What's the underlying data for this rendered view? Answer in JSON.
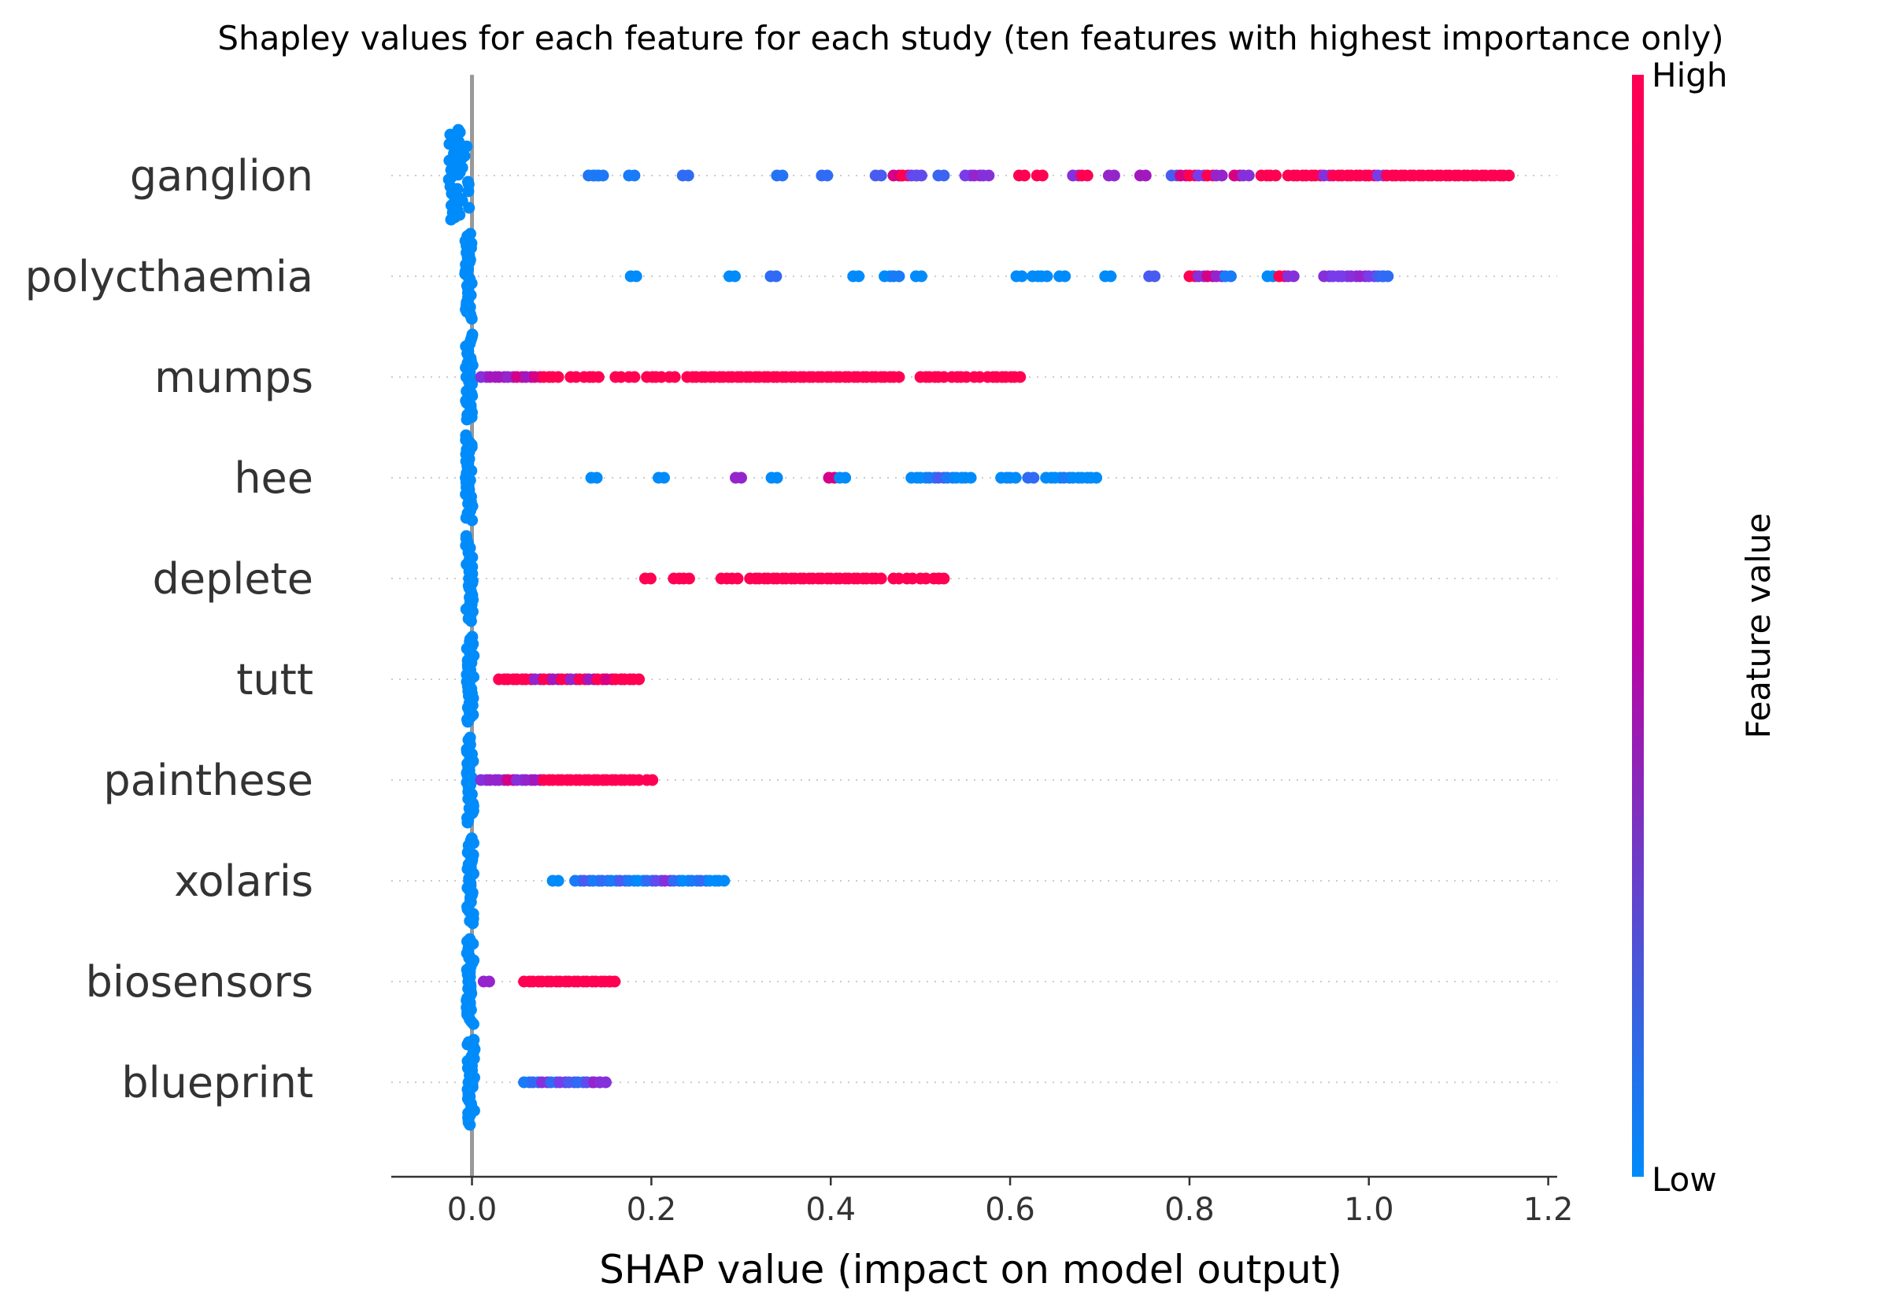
{
  "chart_data": {
    "type": "scatter",
    "subtype": "shap-beeswarm",
    "title": "Shapley values for each feature for each study (ten features with highest importance only)",
    "xlabel": "SHAP value (impact on model output)",
    "ylabel": "",
    "xlim": [
      -0.09,
      1.21
    ],
    "xticks": [
      "0.0",
      "0.2",
      "0.4",
      "0.6",
      "0.8",
      "1.0",
      "1.2"
    ],
    "xtick_values": [
      0.0,
      0.2,
      0.4,
      0.6,
      0.8,
      1.0,
      1.2
    ],
    "grid": false,
    "colorbar": {
      "label": "Feature value",
      "high_label": "High",
      "low_label": "Low",
      "high_color": "#ff0052",
      "low_color": "#008bfb"
    },
    "features": [
      {
        "name": "ganglion",
        "zero_cluster": {
          "center": -0.015,
          "spread": 0.012,
          "color": 0
        },
        "points": [
          [
            0.13,
            0.15
          ],
          [
            0.135,
            0.1
          ],
          [
            0.14,
            0.12
          ],
          [
            0.175,
            0.1
          ],
          [
            0.235,
            0.2
          ],
          [
            0.34,
            0.15
          ],
          [
            0.39,
            0.2
          ],
          [
            0.45,
            0.3
          ],
          [
            0.47,
            0.9
          ],
          [
            0.48,
            1
          ],
          [
            0.49,
            0.5
          ],
          [
            0.495,
            0.4
          ],
          [
            0.52,
            0.25
          ],
          [
            0.55,
            0.5
          ],
          [
            0.56,
            0.7
          ],
          [
            0.57,
            0.6
          ],
          [
            0.61,
            1
          ],
          [
            0.63,
            1
          ],
          [
            0.67,
            0.6
          ],
          [
            0.68,
            1
          ],
          [
            0.71,
            0.7
          ],
          [
            0.745,
            0.8
          ],
          [
            0.78,
            0.3
          ],
          [
            0.79,
            0.9
          ],
          [
            0.8,
            1
          ],
          [
            0.81,
            0.5
          ],
          [
            0.82,
            1
          ],
          [
            0.83,
            0.7
          ],
          [
            0.85,
            0.9
          ],
          [
            0.86,
            0.6
          ],
          [
            0.88,
            1
          ],
          [
            0.89,
            1
          ],
          [
            0.91,
            1
          ],
          [
            0.92,
            1
          ],
          [
            0.93,
            1
          ],
          [
            0.94,
            1
          ],
          [
            0.95,
            0.6
          ],
          [
            0.96,
            1
          ],
          [
            0.97,
            1
          ],
          [
            0.98,
            1
          ],
          [
            0.99,
            1
          ],
          [
            1.0,
            1
          ],
          [
            1.01,
            0.5
          ],
          [
            1.02,
            1
          ],
          [
            1.03,
            1
          ],
          [
            1.04,
            1
          ],
          [
            1.05,
            1
          ],
          [
            1.06,
            1
          ],
          [
            1.07,
            1
          ],
          [
            1.08,
            1
          ],
          [
            1.09,
            1
          ],
          [
            1.1,
            1
          ],
          [
            1.11,
            1
          ],
          [
            1.12,
            1
          ],
          [
            1.13,
            1
          ],
          [
            1.14,
            1
          ],
          [
            1.15,
            1
          ]
        ]
      },
      {
        "name": "polycthaemia",
        "zero_cluster": {
          "center": -0.004,
          "spread": 0.004,
          "color": 0
        },
        "points": [
          [
            0.177,
            0
          ],
          [
            0.287,
            0
          ],
          [
            0.333,
            0.2
          ],
          [
            0.425,
            0
          ],
          [
            0.46,
            0
          ],
          [
            0.47,
            0.1
          ],
          [
            0.495,
            0
          ],
          [
            0.607,
            0
          ],
          [
            0.625,
            0
          ],
          [
            0.635,
            0
          ],
          [
            0.655,
            0
          ],
          [
            0.706,
            0
          ],
          [
            0.755,
            0.3
          ],
          [
            0.8,
            1
          ],
          [
            0.81,
            0.6
          ],
          [
            0.82,
            0.9
          ],
          [
            0.83,
            0.7
          ],
          [
            0.84,
            0.1
          ],
          [
            0.887,
            0
          ],
          [
            0.9,
            1
          ],
          [
            0.91,
            0.6
          ],
          [
            0.95,
            0.6
          ],
          [
            0.96,
            0.5
          ],
          [
            0.97,
            0.5
          ],
          [
            0.98,
            0.6
          ],
          [
            0.99,
            0.7
          ],
          [
            1.0,
            0.5
          ],
          [
            1.01,
            0.3
          ],
          [
            1.015,
            0.2
          ]
        ]
      },
      {
        "name": "mumps",
        "zero_cluster": {
          "center": -0.003,
          "spread": 0.004,
          "color": 0
        },
        "points": [
          [
            0.01,
            0.6
          ],
          [
            0.02,
            0.8
          ],
          [
            0.03,
            0.8
          ],
          [
            0.04,
            0.7
          ],
          [
            0.05,
            0.9
          ],
          [
            0.06,
            0.8
          ],
          [
            0.07,
            0.9
          ],
          [
            0.08,
            1
          ],
          [
            0.09,
            1
          ],
          [
            0.11,
            1
          ],
          [
            0.125,
            1
          ],
          [
            0.135,
            1
          ],
          [
            0.16,
            1
          ],
          [
            0.175,
            1
          ],
          [
            0.195,
            1
          ],
          [
            0.205,
            1
          ],
          [
            0.22,
            1
          ],
          [
            0.24,
            1
          ],
          [
            0.25,
            1
          ],
          [
            0.26,
            1
          ],
          [
            0.27,
            1
          ],
          [
            0.28,
            1
          ],
          [
            0.29,
            1
          ],
          [
            0.3,
            1
          ],
          [
            0.31,
            1
          ],
          [
            0.32,
            1
          ],
          [
            0.33,
            1
          ],
          [
            0.34,
            1
          ],
          [
            0.35,
            1
          ],
          [
            0.36,
            1
          ],
          [
            0.37,
            1
          ],
          [
            0.38,
            1
          ],
          [
            0.39,
            1
          ],
          [
            0.4,
            1
          ],
          [
            0.41,
            1
          ],
          [
            0.42,
            1
          ],
          [
            0.43,
            1
          ],
          [
            0.44,
            1
          ],
          [
            0.45,
            1
          ],
          [
            0.46,
            1
          ],
          [
            0.47,
            1
          ],
          [
            0.5,
            1
          ],
          [
            0.51,
            1
          ],
          [
            0.52,
            1
          ],
          [
            0.535,
            1
          ],
          [
            0.545,
            1
          ],
          [
            0.56,
            1
          ],
          [
            0.575,
            1
          ],
          [
            0.585,
            1
          ],
          [
            0.595,
            1
          ],
          [
            0.605,
            1
          ]
        ]
      },
      {
        "name": "hee",
        "zero_cluster": {
          "center": -0.003,
          "spread": 0.004,
          "color": 0
        },
        "points": [
          [
            0.133,
            0
          ],
          [
            0.208,
            0
          ],
          [
            0.294,
            0.7
          ],
          [
            0.334,
            0
          ],
          [
            0.398,
            0.9
          ],
          [
            0.41,
            0
          ],
          [
            0.49,
            0
          ],
          [
            0.5,
            0
          ],
          [
            0.51,
            0.1
          ],
          [
            0.52,
            0.3
          ],
          [
            0.53,
            0.1
          ],
          [
            0.54,
            0
          ],
          [
            0.55,
            0
          ],
          [
            0.59,
            0
          ],
          [
            0.6,
            0
          ],
          [
            0.62,
            0.2
          ],
          [
            0.64,
            0
          ],
          [
            0.65,
            0
          ],
          [
            0.66,
            0.1
          ],
          [
            0.67,
            0
          ],
          [
            0.68,
            0
          ],
          [
            0.69,
            0
          ]
        ]
      },
      {
        "name": "deplete",
        "zero_cluster": {
          "center": -0.003,
          "spread": 0.004,
          "color": 0
        },
        "points": [
          [
            0.193,
            1
          ],
          [
            0.225,
            1
          ],
          [
            0.236,
            1
          ],
          [
            0.278,
            1
          ],
          [
            0.29,
            1
          ],
          [
            0.31,
            1
          ],
          [
            0.32,
            1
          ],
          [
            0.33,
            1
          ],
          [
            0.34,
            1
          ],
          [
            0.35,
            1
          ],
          [
            0.36,
            1
          ],
          [
            0.37,
            1
          ],
          [
            0.38,
            1
          ],
          [
            0.39,
            1
          ],
          [
            0.4,
            1
          ],
          [
            0.41,
            1
          ],
          [
            0.42,
            1
          ],
          [
            0.43,
            1
          ],
          [
            0.44,
            1
          ],
          [
            0.45,
            1
          ],
          [
            0.47,
            1
          ],
          [
            0.485,
            1
          ],
          [
            0.5,
            1
          ],
          [
            0.515,
            1
          ],
          [
            0.52,
            1
          ]
        ]
      },
      {
        "name": "tutt",
        "zero_cluster": {
          "center": -0.002,
          "spread": 0.004,
          "color": 0
        },
        "points": [
          [
            0.03,
            1
          ],
          [
            0.04,
            1
          ],
          [
            0.05,
            1
          ],
          [
            0.06,
            1
          ],
          [
            0.07,
            0.7
          ],
          [
            0.08,
            1
          ],
          [
            0.09,
            0.8
          ],
          [
            0.1,
            1
          ],
          [
            0.11,
            0.7
          ],
          [
            0.12,
            1
          ],
          [
            0.13,
            0.8
          ],
          [
            0.14,
            1
          ],
          [
            0.15,
            0.9
          ],
          [
            0.16,
            1
          ],
          [
            0.17,
            1
          ],
          [
            0.18,
            1
          ]
        ]
      },
      {
        "name": "painthese",
        "zero_cluster": {
          "center": -0.002,
          "spread": 0.004,
          "color": 0
        },
        "points": [
          [
            0.01,
            0.6
          ],
          [
            0.02,
            0.7
          ],
          [
            0.03,
            0.7
          ],
          [
            0.04,
            0.9
          ],
          [
            0.05,
            0.6
          ],
          [
            0.06,
            0.7
          ],
          [
            0.07,
            0.8
          ],
          [
            0.08,
            1
          ],
          [
            0.09,
            1
          ],
          [
            0.1,
            1
          ],
          [
            0.11,
            1
          ],
          [
            0.12,
            1
          ],
          [
            0.13,
            1
          ],
          [
            0.14,
            1
          ],
          [
            0.15,
            1
          ],
          [
            0.16,
            1
          ],
          [
            0.17,
            1
          ],
          [
            0.18,
            1
          ],
          [
            0.195,
            1
          ]
        ]
      },
      {
        "name": "xolaris",
        "zero_cluster": {
          "center": -0.002,
          "spread": 0.004,
          "color": 0
        },
        "points": [
          [
            0.09,
            0
          ],
          [
            0.115,
            0.1
          ],
          [
            0.125,
            0.3
          ],
          [
            0.135,
            0.1
          ],
          [
            0.145,
            0.2
          ],
          [
            0.155,
            0.1
          ],
          [
            0.165,
            0.3
          ],
          [
            0.175,
            0.1
          ],
          [
            0.185,
            0
          ],
          [
            0.195,
            0.2
          ],
          [
            0.205,
            0.4
          ],
          [
            0.215,
            0.6
          ],
          [
            0.225,
            0.2
          ],
          [
            0.235,
            0
          ],
          [
            0.245,
            0.1
          ],
          [
            0.255,
            0.2
          ],
          [
            0.265,
            0
          ],
          [
            0.275,
            0
          ]
        ]
      },
      {
        "name": "biosensors",
        "zero_cluster": {
          "center": -0.002,
          "spread": 0.004,
          "color": 0
        },
        "points": [
          [
            0.013,
            0.7
          ],
          [
            0.058,
            1
          ],
          [
            0.068,
            1
          ],
          [
            0.078,
            1
          ],
          [
            0.088,
            1
          ],
          [
            0.098,
            1
          ],
          [
            0.108,
            1
          ],
          [
            0.118,
            1
          ],
          [
            0.128,
            1
          ],
          [
            0.138,
            1
          ],
          [
            0.148,
            1
          ],
          [
            0.153,
            1
          ]
        ]
      },
      {
        "name": "blueprint",
        "zero_cluster": {
          "center": -0.001,
          "spread": 0.004,
          "color": 0
        },
        "points": [
          [
            0.058,
            0.1
          ],
          [
            0.068,
            0.2
          ],
          [
            0.078,
            0.6
          ],
          [
            0.088,
            0.2
          ],
          [
            0.098,
            0.5
          ],
          [
            0.108,
            0.3
          ],
          [
            0.118,
            0.2
          ],
          [
            0.128,
            0.4
          ],
          [
            0.136,
            0.7
          ],
          [
            0.143,
            0.6
          ]
        ]
      }
    ]
  }
}
